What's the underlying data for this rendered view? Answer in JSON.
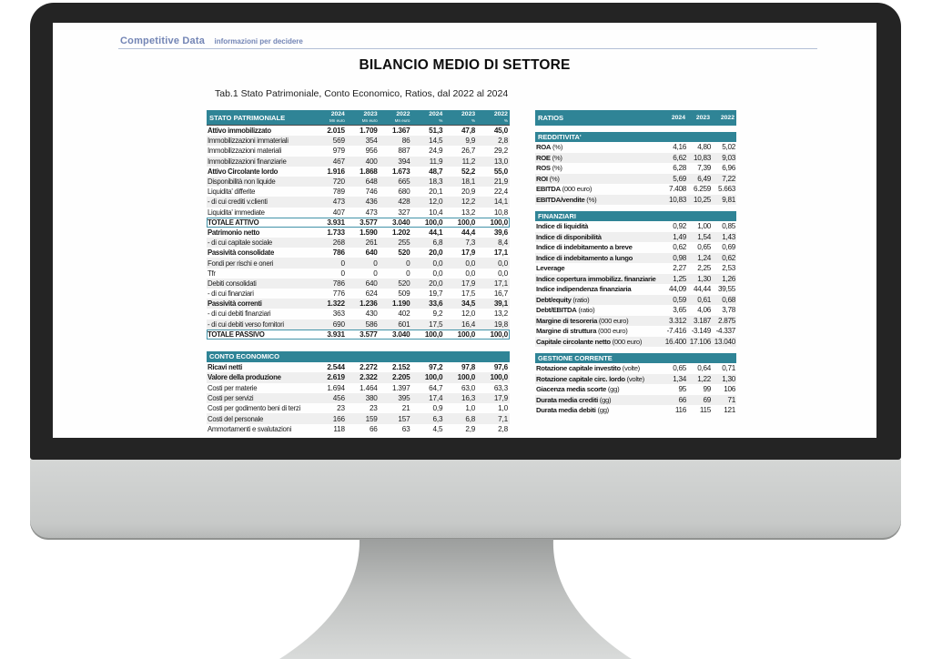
{
  "brand": {
    "name": "Competitive Data",
    "tagline": "informazioni per decidere"
  },
  "title": "BILANCIO MEDIO DI SETTORE",
  "subtitle": "Tab.1 Stato Patrimoniale, Conto Economico, Ratios, dal 2022 al 2024",
  "colors": {
    "header_teal": "#2F8496",
    "stripe_gray": "#EFEFEF",
    "logo_blue": "#7385B5",
    "total_box_border": "#4293A8",
    "bezel_dark": "#242424",
    "chin_gray": "#C7C9C8"
  },
  "stato_patrimoniale": {
    "title": "STATO PATRIMONIALE",
    "col_headers": [
      {
        "year": "2024",
        "unit": "Mn euro"
      },
      {
        "year": "2023",
        "unit": "Mn euro"
      },
      {
        "year": "2022",
        "unit": "Mn euro"
      },
      {
        "year": "2024",
        "unit": "%"
      },
      {
        "year": "2023",
        "unit": "%"
      },
      {
        "year": "2022",
        "unit": "%"
      }
    ],
    "rows": [
      {
        "label": "Attivo immobilizzato",
        "bold": true,
        "values": [
          "2.015",
          "1.709",
          "1.367",
          "51,3",
          "47,8",
          "45,0"
        ]
      },
      {
        "label": "Immobilizzazioni immateriali",
        "values": [
          "569",
          "354",
          "86",
          "14,5",
          "9,9",
          "2,8"
        ]
      },
      {
        "label": "Immobilizzazioni materiali",
        "values": [
          "979",
          "956",
          "887",
          "24,9",
          "26,7",
          "29,2"
        ]
      },
      {
        "label": "Immobilizzazioni finanziarie",
        "values": [
          "467",
          "400",
          "394",
          "11,9",
          "11,2",
          "13,0"
        ]
      },
      {
        "label": "Attivo Circolante  lordo",
        "bold": true,
        "values": [
          "1.916",
          "1.868",
          "1.673",
          "48,7",
          "52,2",
          "55,0"
        ]
      },
      {
        "label": "Disponibilità non liquide",
        "values": [
          "720",
          "648",
          "665",
          "18,3",
          "18,1",
          "21,9"
        ]
      },
      {
        "label": "Liquidita'  differite",
        "values": [
          "789",
          "746",
          "680",
          "20,1",
          "20,9",
          "22,4"
        ]
      },
      {
        "label": " - di cui crediti v.clienti",
        "values": [
          "473",
          "436",
          "428",
          "12,0",
          "12,2",
          "14,1"
        ]
      },
      {
        "label": "Liquidita'  immediate",
        "values": [
          "407",
          "473",
          "327",
          "10,4",
          "13,2",
          "10,8"
        ]
      },
      {
        "label": "TOTALE ATTIVO",
        "bold": true,
        "box": true,
        "values": [
          "3.931",
          "3.577",
          "3.040",
          "100,0",
          "100,0",
          "100,0"
        ]
      },
      {
        "label": "Patrimonio netto",
        "bold": true,
        "values": [
          "1.733",
          "1.590",
          "1.202",
          "44,1",
          "44,4",
          "39,6"
        ]
      },
      {
        "label": " - di cui capitale sociale",
        "values": [
          "268",
          "261",
          "255",
          "6,8",
          "7,3",
          "8,4"
        ]
      },
      {
        "label": "Passività consolidate",
        "bold": true,
        "values": [
          "786",
          "640",
          "520",
          "20,0",
          "17,9",
          "17,1"
        ]
      },
      {
        "label": "Fondi per rischi e oneri",
        "values": [
          "0",
          "0",
          "0",
          "0,0",
          "0,0",
          "0,0"
        ]
      },
      {
        "label": "Tfr",
        "values": [
          "0",
          "0",
          "0",
          "0,0",
          "0,0",
          "0,0"
        ]
      },
      {
        "label": "Debiti consolidati",
        "values": [
          "786",
          "640",
          "520",
          "20,0",
          "17,9",
          "17,1"
        ]
      },
      {
        "label": " - di cui finanziari",
        "values": [
          "776",
          "624",
          "509",
          "19,7",
          "17,5",
          "16,7"
        ]
      },
      {
        "label": "Passività correnti",
        "bold": true,
        "values": [
          "1.322",
          "1.236",
          "1.190",
          "33,6",
          "34,5",
          "39,1"
        ]
      },
      {
        "label": " - di cui debiti finanziari",
        "values": [
          "363",
          "430",
          "402",
          "9,2",
          "12,0",
          "13,2"
        ]
      },
      {
        "label": " - di cui debiti verso fornitori",
        "values": [
          "690",
          "586",
          "601",
          "17,5",
          "16,4",
          "19,8"
        ]
      },
      {
        "label": "TOTALE PASSIVO",
        "bold": true,
        "box": true,
        "values": [
          "3.931",
          "3.577",
          "3.040",
          "100,0",
          "100,0",
          "100,0"
        ]
      }
    ]
  },
  "conto_economico": {
    "title": "CONTO ECONOMICO",
    "rows": [
      {
        "label": "Ricavi netti",
        "bold": true,
        "values": [
          "2.544",
          "2.272",
          "2.152",
          "97,2",
          "97,8",
          "97,6"
        ]
      },
      {
        "label": "Valore della produzione",
        "bold": true,
        "values": [
          "2.619",
          "2.322",
          "2.205",
          "100,0",
          "100,0",
          "100,0"
        ]
      },
      {
        "label": "Costi per materie",
        "values": [
          "1.694",
          "1.464",
          "1.397",
          "64,7",
          "63,0",
          "63,3"
        ]
      },
      {
        "label": "Costi per servizi",
        "values": [
          "456",
          "380",
          "395",
          "17,4",
          "16,3",
          "17,9"
        ]
      },
      {
        "label": "Costi per godimento beni di terzi",
        "values": [
          "23",
          "23",
          "21",
          "0,9",
          "1,0",
          "1,0"
        ]
      },
      {
        "label": "Costi del personale",
        "values": [
          "166",
          "159",
          "157",
          "6,3",
          "6,8",
          "7,1"
        ]
      },
      {
        "label": "Ammortamenti e svalutazioni",
        "values": [
          "118",
          "66",
          "63",
          "4,5",
          "2,9",
          "2,8"
        ]
      }
    ]
  },
  "ratios": {
    "title": "RATIOS",
    "years": [
      "2024",
      "2023",
      "2022"
    ],
    "sections": [
      {
        "title": "REDDITIVITA'",
        "rows": [
          {
            "label": "ROA",
            "unit": "(%)",
            "values": [
              "4,16",
              "4,80",
              "5,02"
            ]
          },
          {
            "label": "ROE",
            "unit": "(%)",
            "values": [
              "6,62",
              "10,83",
              "9,03"
            ]
          },
          {
            "label": "ROS",
            "unit": "(%)",
            "values": [
              "6,28",
              "7,39",
              "6,96"
            ]
          },
          {
            "label": "ROI",
            "unit": "(%)",
            "values": [
              "5,69",
              "6,49",
              "7,22"
            ]
          },
          {
            "label": "EBITDA",
            "unit": "(000 euro)",
            "values": [
              "7.408",
              "6.259",
              "5.663"
            ]
          },
          {
            "label": "EBITDA/vendite",
            "unit": "(%)",
            "values": [
              "10,83",
              "10,25",
              "9,81"
            ]
          }
        ]
      },
      {
        "title": "FINANZIARI",
        "rows": [
          {
            "label": "Indice di liquidità",
            "values": [
              "0,92",
              "1,00",
              "0,85"
            ]
          },
          {
            "label": "Indice di disponibilità",
            "values": [
              "1,49",
              "1,54",
              "1,43"
            ]
          },
          {
            "label": "Indice di indebitamento a breve",
            "values": [
              "0,62",
              "0,65",
              "0,69"
            ]
          },
          {
            "label": "Indice di indebitamento a lungo",
            "values": [
              "0,98",
              "1,24",
              "0,62"
            ]
          },
          {
            "label": "Leverage",
            "values": [
              "2,27",
              "2,25",
              "2,53"
            ]
          },
          {
            "label": "Indice copertura immobilizz. finanziarie",
            "values": [
              "1,25",
              "1,30",
              "1,26"
            ]
          },
          {
            "label": "Indice indipendenza finanziaria",
            "values": [
              "44,09",
              "44,44",
              "39,55"
            ]
          },
          {
            "label": "Debt/equity",
            "unit": "(ratio)",
            "values": [
              "0,59",
              "0,61",
              "0,68"
            ]
          },
          {
            "label": "Debt/EBITDA",
            "unit": "(ratio)",
            "values": [
              "3,65",
              "4,06",
              "3,78"
            ]
          },
          {
            "label": "Margine di tesoreria",
            "unit": "(000 euro)",
            "values": [
              "3.312",
              "3.187",
              "2.875"
            ]
          },
          {
            "label": "Margine di struttura",
            "unit": "(000 euro)",
            "values": [
              "-7.416",
              "-3.149",
              "-4.337"
            ]
          },
          {
            "label": "Capitale circolante netto",
            "unit": "(000 euro)",
            "values": [
              "16.400",
              "17.106",
              "13.040"
            ]
          }
        ]
      },
      {
        "title": "GESTIONE CORRENTE",
        "rows": [
          {
            "label": "Rotazione capitale investito",
            "unit": "(volte)",
            "values": [
              "0,65",
              "0,64",
              "0,71"
            ]
          },
          {
            "label": "Rotazione capitale circ. lordo",
            "unit": "(volte)",
            "values": [
              "1,34",
              "1,22",
              "1,30"
            ]
          },
          {
            "label": "Giacenza media scorte",
            "unit": "(gg)",
            "values": [
              "95",
              "99",
              "106"
            ]
          },
          {
            "label": "Durata media crediti",
            "unit": "(gg)",
            "values": [
              "66",
              "69",
              "71"
            ]
          },
          {
            "label": "Durata media debiti",
            "unit": "(gg)",
            "values": [
              "116",
              "115",
              "121"
            ]
          }
        ]
      }
    ]
  }
}
